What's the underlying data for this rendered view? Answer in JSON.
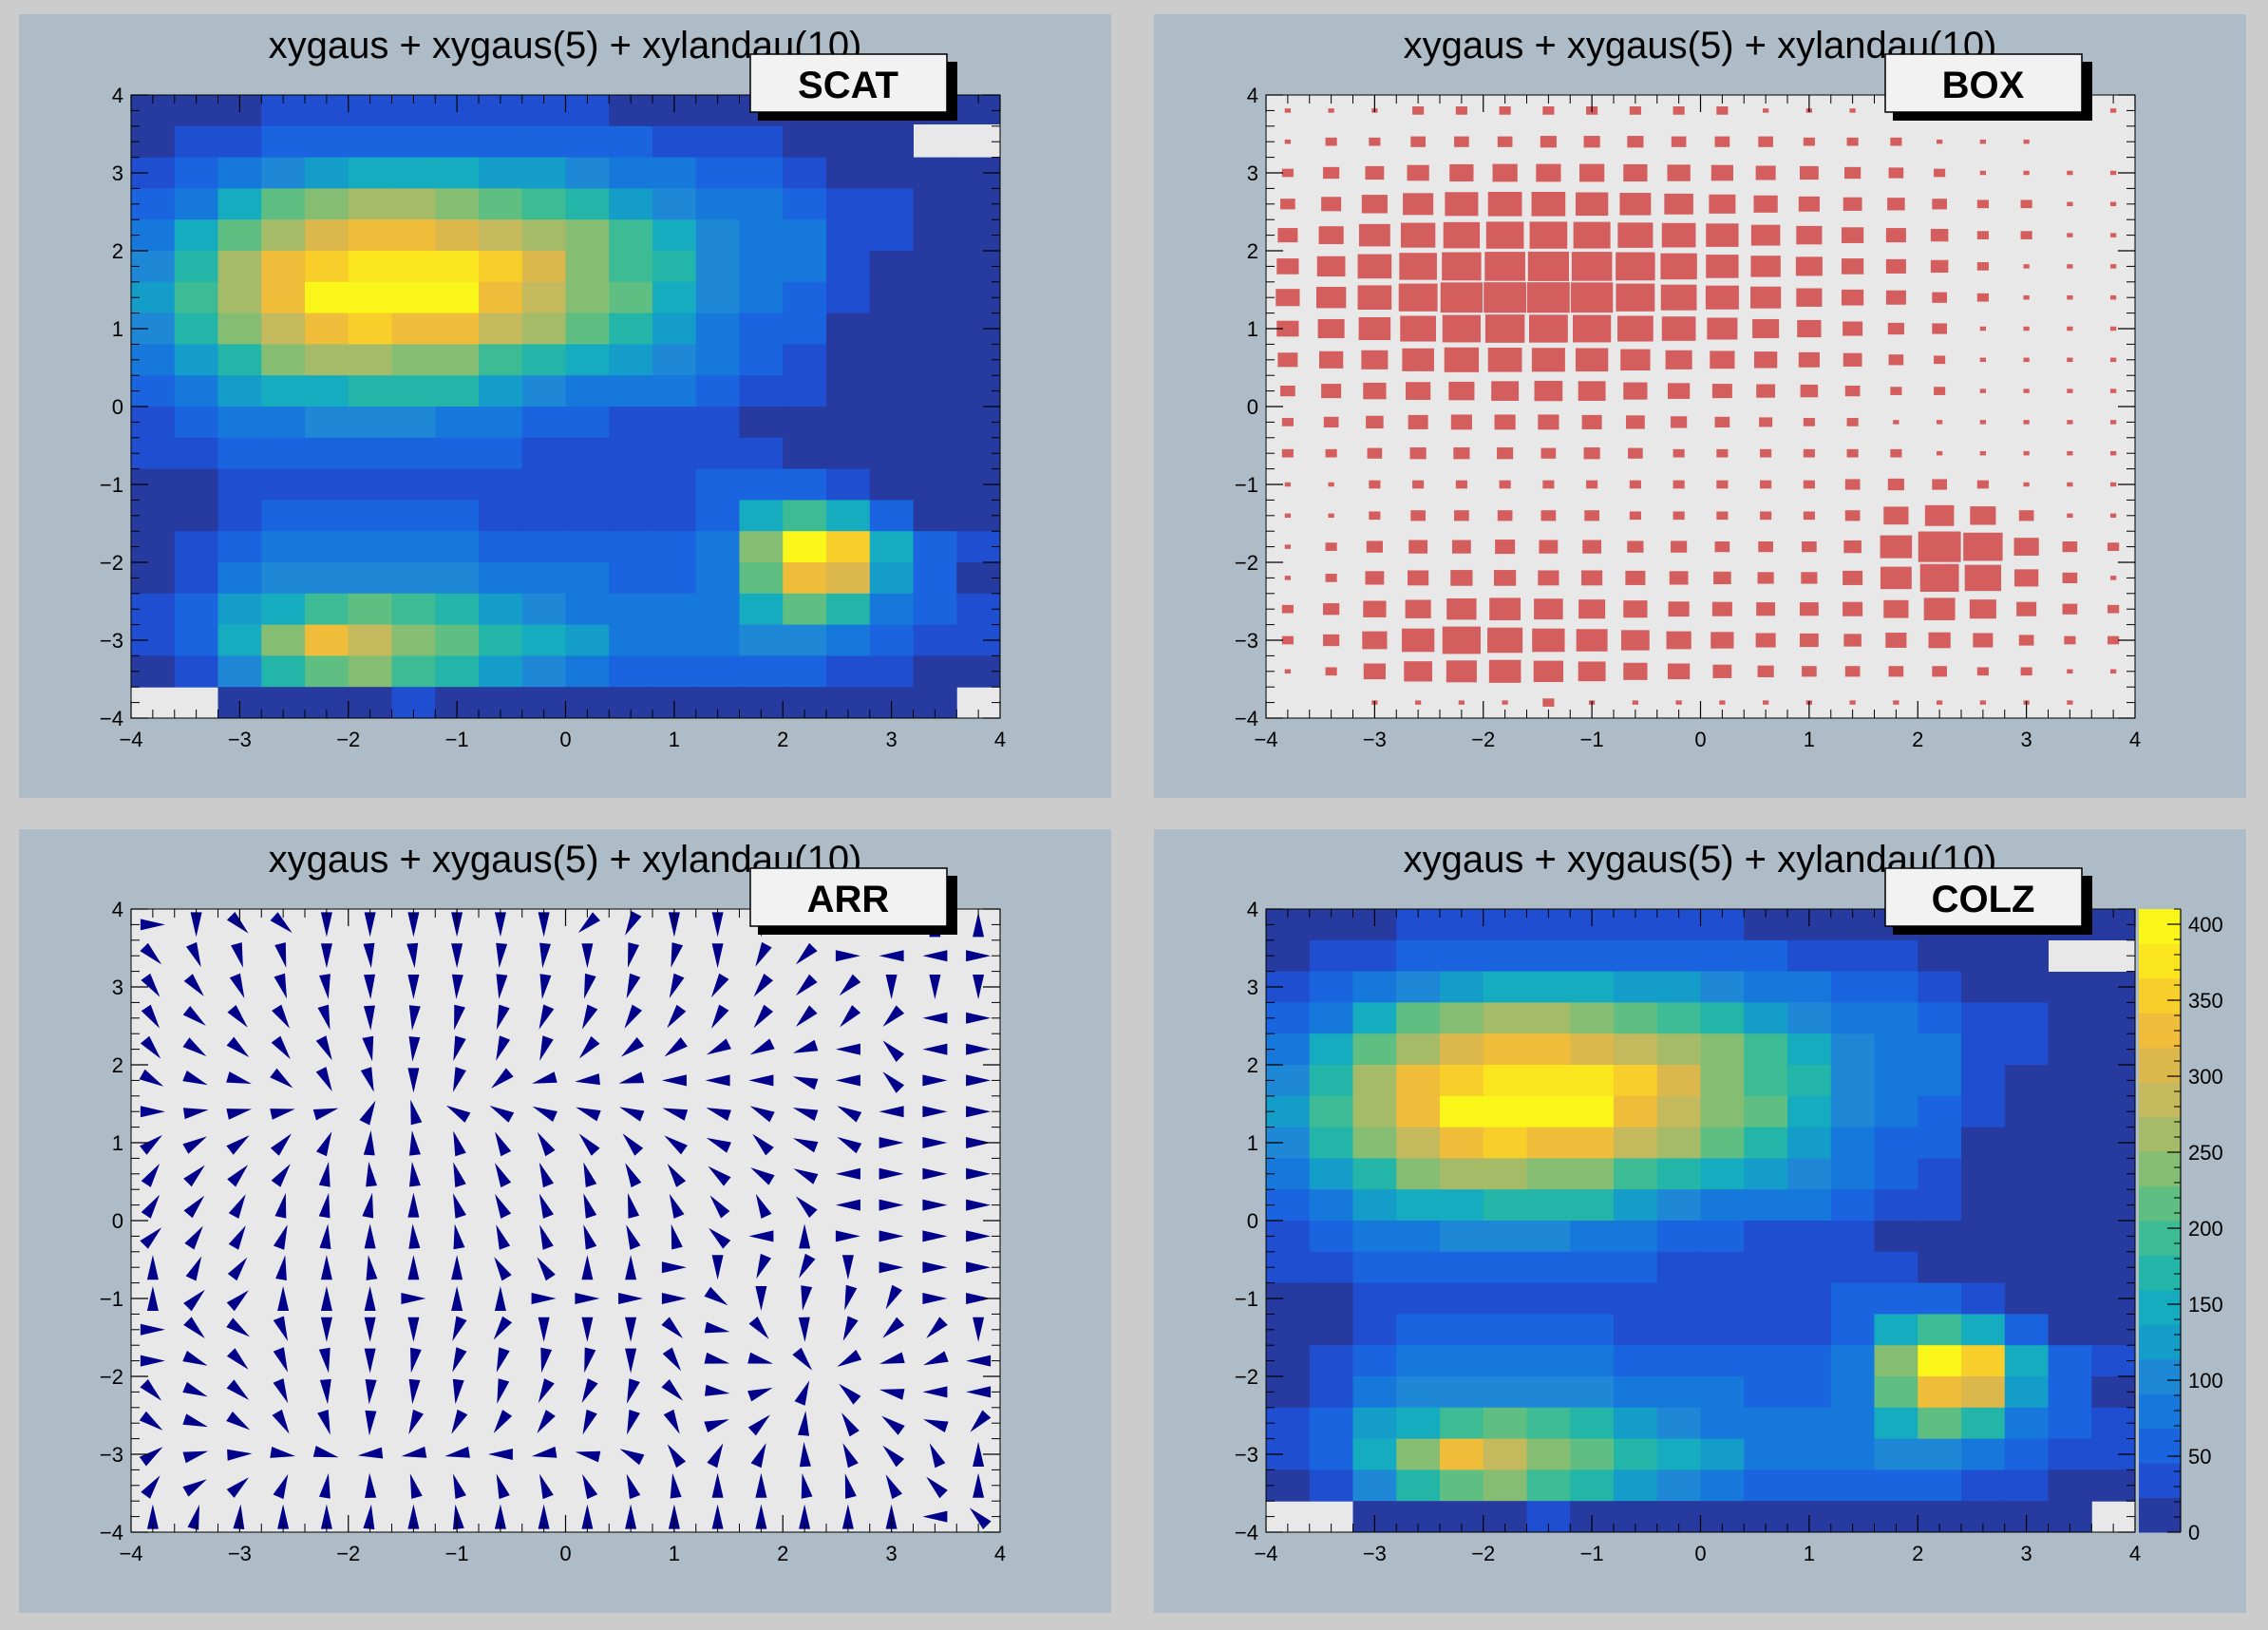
{
  "window": {
    "background": "#cccccc",
    "pad_color": "#adbcc7",
    "frame_color": "#e8e8e8"
  },
  "panels": [
    {
      "id": "scat",
      "title": "xygaus + xygaus(5) + xylandau(10)",
      "option": "SCAT"
    },
    {
      "id": "box",
      "title": "xygaus + xygaus(5) + xylandau(10)",
      "option": "BOX"
    },
    {
      "id": "arr",
      "title": "xygaus + xygaus(5) + xylandau(10)",
      "option": "ARR"
    },
    {
      "id": "colz",
      "title": "xygaus + xygaus(5) + xylandau(10)",
      "option": "COLZ"
    }
  ],
  "chart_data": [
    {
      "type": "heatmap",
      "title": "xygaus + xygaus(5) + xylandau(10)",
      "draw_option": "SCAT",
      "xlim": [
        -4,
        4
      ],
      "ylim": [
        -4,
        4
      ],
      "x_ticks": [
        "−4",
        "−3",
        "−2",
        "−1",
        "0",
        "1",
        "2",
        "3",
        "4"
      ],
      "y_ticks": [
        "−4",
        "−3",
        "−2",
        "−1",
        "0",
        "1",
        "2",
        "3",
        "4"
      ],
      "bins": [
        20,
        20
      ],
      "z_values": "shared with COLZ panel"
    },
    {
      "type": "heatmap",
      "title": "xygaus + xygaus(5) + xylandau(10)",
      "draw_option": "BOX",
      "box_color": "#d45d5d",
      "xlim": [
        -4,
        4
      ],
      "ylim": [
        -4,
        4
      ],
      "x_ticks": [
        "−4",
        "−3",
        "−2",
        "−1",
        "0",
        "1",
        "2",
        "3",
        "4"
      ],
      "y_ticks": [
        "−4",
        "−3",
        "−2",
        "−1",
        "0",
        "1",
        "2",
        "3",
        "4"
      ],
      "bins": [
        20,
        20
      ]
    },
    {
      "type": "heatmap",
      "title": "xygaus + xygaus(5) + xylandau(10)",
      "draw_option": "ARR",
      "arrow_color": "#00008b",
      "xlim": [
        -4,
        4
      ],
      "ylim": [
        -4,
        4
      ],
      "x_ticks": [
        "−4",
        "−3",
        "−2",
        "−1",
        "0",
        "1",
        "2",
        "3",
        "4"
      ],
      "y_ticks": [
        "−4",
        "−3",
        "−2",
        "−1",
        "0",
        "1",
        "2",
        "3",
        "4"
      ],
      "bins": [
        20,
        20
      ]
    },
    {
      "type": "heatmap",
      "title": "xygaus + xygaus(5) + xylandau(10)",
      "draw_option": "COLZ",
      "xlim": [
        -4,
        4
      ],
      "ylim": [
        -4,
        4
      ],
      "zlim": [
        0,
        410
      ],
      "x_ticks": [
        "−4",
        "−3",
        "−2",
        "−1",
        "0",
        "1",
        "2",
        "3",
        "4"
      ],
      "y_ticks": [
        "−4",
        "−3",
        "−2",
        "−1",
        "0",
        "1",
        "2",
        "3",
        "4"
      ],
      "z_ticks": [
        "0",
        "50",
        "100",
        "150",
        "200",
        "250",
        "300",
        "350",
        "400"
      ],
      "z_tick_values": [
        0,
        50,
        100,
        150,
        200,
        250,
        300,
        350,
        400
      ],
      "palette": [
        "#263a9f",
        "#1f4fd0",
        "#1a64df",
        "#1778dc",
        "#1e88d6",
        "#139dc8",
        "#16acc0",
        "#24b5a9",
        "#3dbb95",
        "#5fbf83",
        "#85be73",
        "#a6bb68",
        "#c4b95d",
        "#dcb84c",
        "#f0bd3a",
        "#f8ce2b",
        "#fbe51f",
        "#fbf61a"
      ],
      "x_bin_centers": [
        -3.8,
        -3.4,
        -3.0,
        -2.6,
        -2.2,
        -1.8,
        -1.4,
        -1.0,
        -0.6,
        -0.2,
        0.2,
        0.6,
        1.0,
        1.4,
        1.8,
        2.2,
        2.6,
        3.0,
        3.4,
        3.8
      ],
      "y_bin_centers_top_to_bottom": [
        3.8,
        3.4,
        3.0,
        2.6,
        2.2,
        1.8,
        1.4,
        1.0,
        0.6,
        0.2,
        -0.2,
        -0.6,
        -1.0,
        -1.4,
        -1.8,
        -2.2,
        -2.6,
        -3.0,
        -3.4,
        -3.8
      ],
      "z_rows_top_to_bottom": [
        [
          8,
          8,
          8,
          30,
          30,
          30,
          30,
          30,
          30,
          30,
          30,
          8,
          8,
          8,
          8,
          8,
          8,
          8,
          8,
          8
        ],
        [
          8,
          30,
          30,
          50,
          50,
          50,
          60,
          60,
          60,
          50,
          50,
          50,
          30,
          30,
          30,
          8,
          8,
          8,
          0,
          0
        ],
        [
          30,
          60,
          80,
          110,
          130,
          140,
          140,
          140,
          130,
          120,
          110,
          90,
          80,
          60,
          50,
          30,
          8,
          8,
          8,
          8
        ],
        [
          50,
          90,
          150,
          210,
          250,
          260,
          260,
          240,
          220,
          190,
          160,
          130,
          100,
          80,
          70,
          50,
          30,
          30,
          8,
          8
        ],
        [
          90,
          140,
          220,
          270,
          300,
          320,
          320,
          310,
          280,
          260,
          240,
          190,
          150,
          110,
          90,
          70,
          30,
          30,
          8,
          8
        ],
        [
          110,
          180,
          260,
          320,
          350,
          370,
          380,
          370,
          350,
          300,
          240,
          200,
          160,
          110,
          90,
          70,
          30,
          8,
          8,
          8
        ],
        [
          130,
          200,
          260,
          340,
          400,
          410,
          410,
          400,
          340,
          290,
          250,
          210,
          150,
          110,
          90,
          50,
          30,
          8,
          8,
          8
        ],
        [
          110,
          160,
          230,
          290,
          330,
          350,
          340,
          330,
          290,
          260,
          210,
          160,
          130,
          90,
          60,
          50,
          8,
          8,
          8,
          8
        ],
        [
          90,
          130,
          160,
          230,
          270,
          260,
          250,
          240,
          200,
          160,
          140,
          120,
          100,
          80,
          50,
          30,
          8,
          8,
          8,
          8
        ],
        [
          50,
          90,
          120,
          140,
          150,
          170,
          180,
          170,
          130,
          110,
          90,
          80,
          70,
          50,
          30,
          30,
          8,
          8,
          8,
          8
        ],
        [
          30,
          50,
          70,
          90,
          100,
          100,
          100,
          90,
          80,
          60,
          50,
          40,
          30,
          30,
          8,
          8,
          8,
          8,
          8,
          8
        ],
        [
          30,
          30,
          50,
          60,
          60,
          60,
          50,
          60,
          50,
          30,
          30,
          30,
          30,
          30,
          30,
          8,
          8,
          8,
          8,
          8
        ],
        [
          8,
          8,
          30,
          30,
          30,
          30,
          30,
          30,
          30,
          30,
          30,
          30,
          30,
          50,
          60,
          50,
          30,
          8,
          8,
          8
        ],
        [
          8,
          8,
          30,
          50,
          50,
          50,
          50,
          50,
          30,
          30,
          30,
          30,
          30,
          50,
          140,
          190,
          150,
          50,
          8,
          8
        ],
        [
          8,
          30,
          60,
          80,
          80,
          90,
          80,
          80,
          60,
          60,
          50,
          50,
          50,
          70,
          230,
          410,
          350,
          140,
          50,
          30
        ],
        [
          8,
          30,
          80,
          100,
          110,
          110,
          100,
          100,
          90,
          80,
          70,
          60,
          60,
          90,
          220,
          340,
          300,
          130,
          50,
          8
        ],
        [
          30,
          60,
          120,
          150,
          200,
          220,
          190,
          160,
          130,
          100,
          90,
          80,
          80,
          90,
          140,
          220,
          160,
          90,
          50,
          30
        ],
        [
          30,
          60,
          140,
          240,
          330,
          280,
          240,
          220,
          180,
          140,
          120,
          90,
          80,
          70,
          100,
          110,
          90,
          50,
          30,
          30
        ],
        [
          8,
          30,
          110,
          180,
          210,
          230,
          200,
          170,
          130,
          110,
          80,
          60,
          50,
          50,
          50,
          50,
          30,
          30,
          8,
          8
        ],
        [
          0,
          0,
          8,
          8,
          8,
          8,
          30,
          8,
          8,
          8,
          8,
          8,
          8,
          8,
          8,
          8,
          8,
          8,
          8,
          0
        ]
      ]
    }
  ]
}
